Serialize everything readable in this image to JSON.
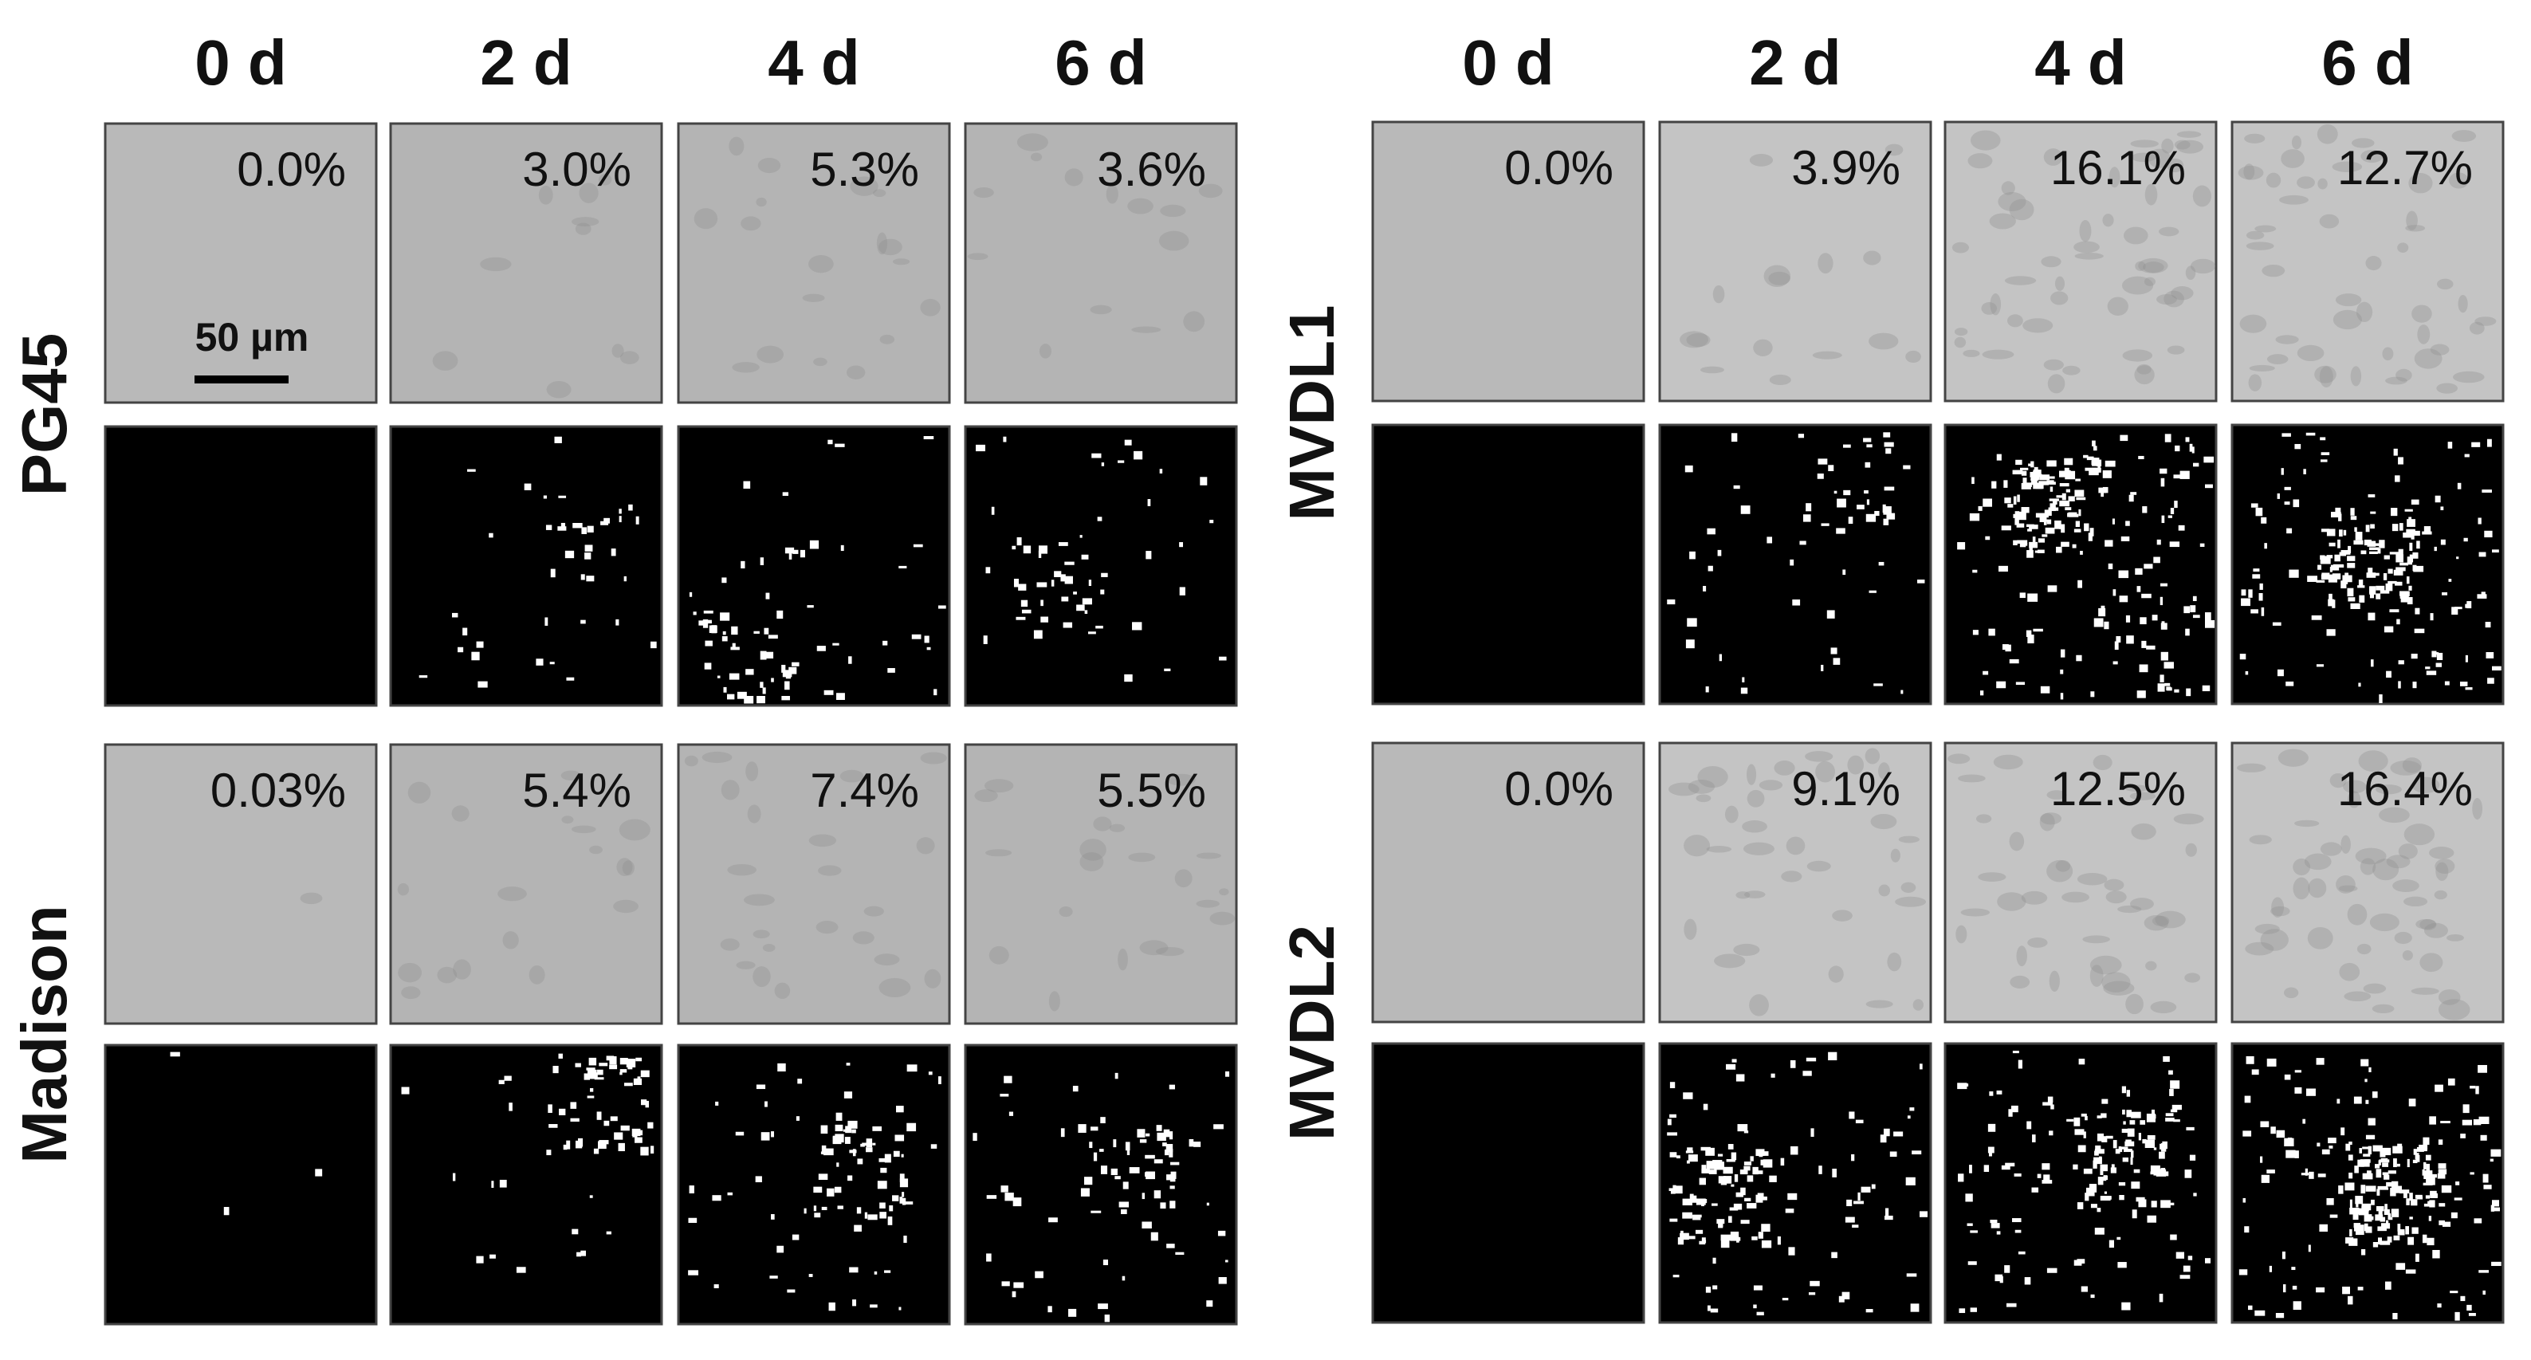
{
  "panels": [
    {
      "columns": [
        "0 d",
        "2 d",
        "4 d",
        "6 d"
      ],
      "rows": [
        {
          "label": "PG45",
          "percentages": [
            "0.0%",
            "3.0%",
            "5.3%",
            "3.6%"
          ]
        },
        {
          "label": "Madison",
          "percentages": [
            "0.03%",
            "5.4%",
            "7.4%",
            "5.5%"
          ]
        }
      ]
    },
    {
      "columns": [
        "0 d",
        "2 d",
        "4 d",
        "6 d"
      ],
      "rows": [
        {
          "label": "MVDL1",
          "percentages": [
            "0.0%",
            "3.9%",
            "16.1%",
            "12.7%"
          ]
        },
        {
          "label": "MVDL2",
          "percentages": [
            "0.0%",
            "9.1%",
            "12.5%",
            "16.4%"
          ]
        }
      ]
    }
  ],
  "scale_bar": "50 µm"
}
